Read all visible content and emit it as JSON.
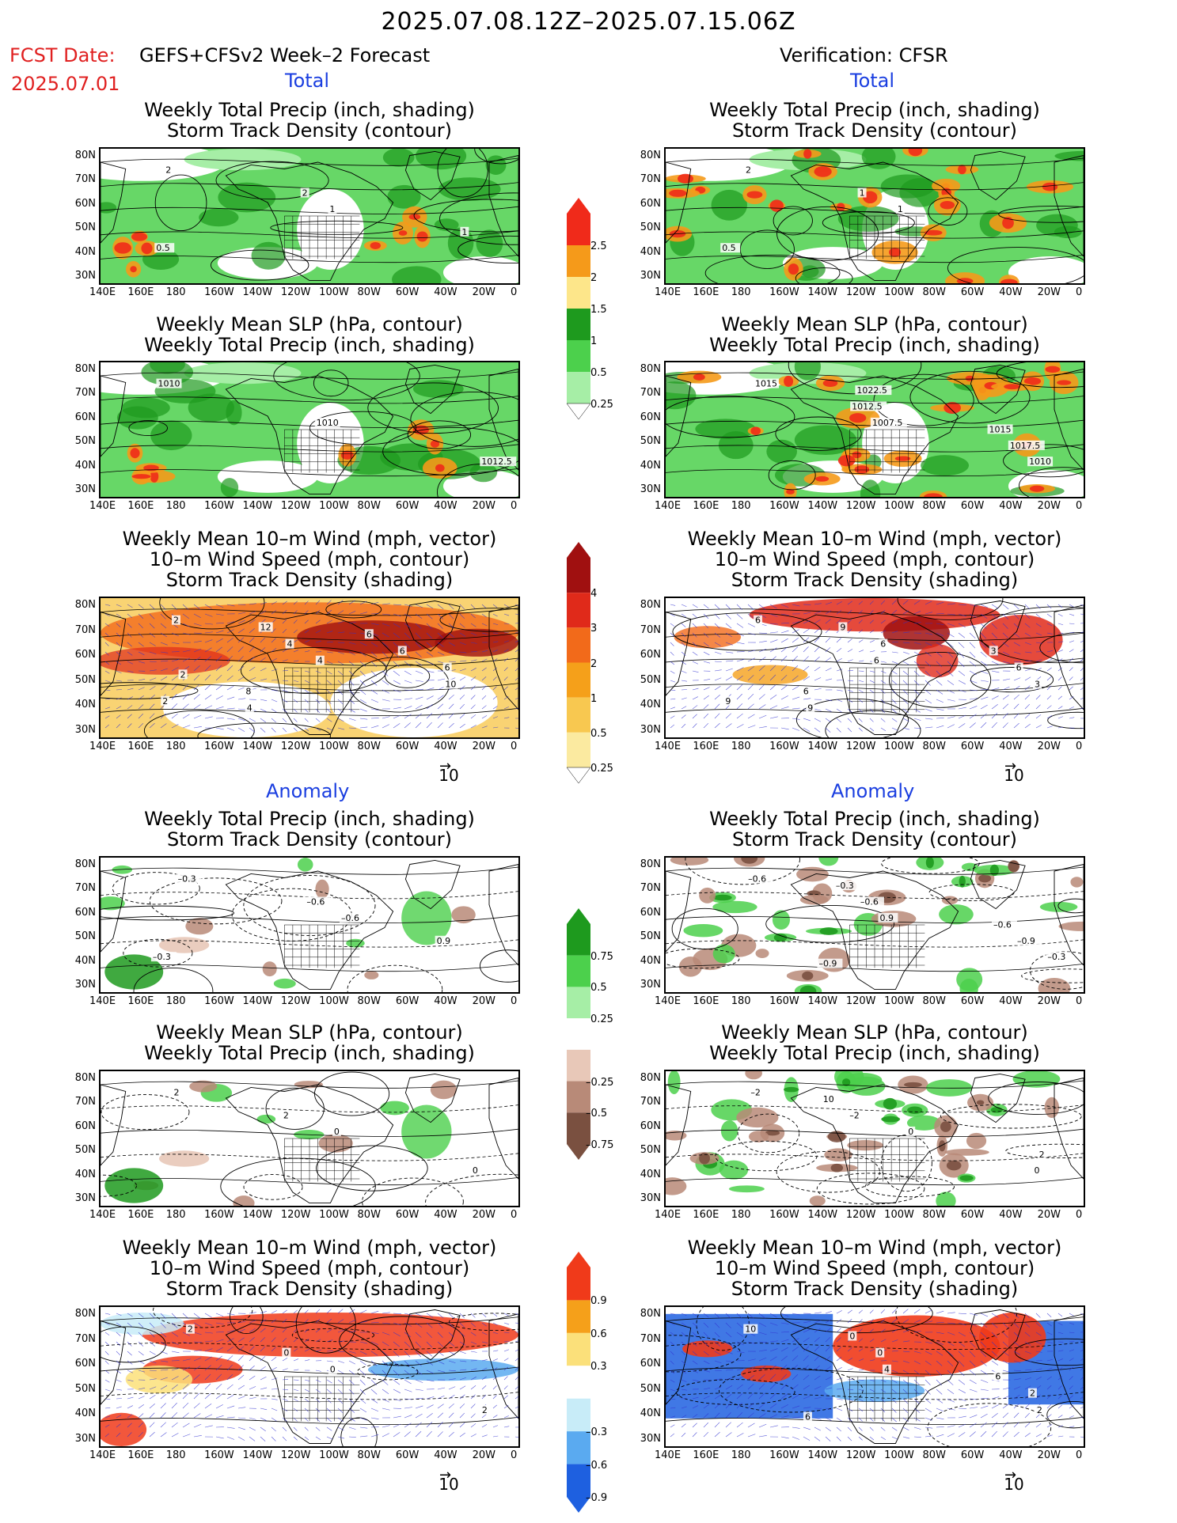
{
  "header": {
    "date_range": "2025.07.08.12Z–2025.07.15.06Z",
    "fcst_label": "FCST Date:",
    "fcst_date": "2025.07.01",
    "model": "GEFS+CFSv2 Week–2 Forecast",
    "verification": "Verification: CFSR"
  },
  "sections": {
    "total": "Total",
    "anomaly": "Anomaly"
  },
  "panel_titles": {
    "precip_storm": [
      "Weekly Total Precip (inch, shading)",
      "Storm Track Density (contour)"
    ],
    "slp_precip": [
      "Weekly Mean SLP (hPa, contour)",
      "Weekly Total Precip (inch, shading)"
    ],
    "wind_storm": [
      "Weekly Mean 10–m Wind (mph, vector)",
      "10–m Wind Speed (mph, contour)",
      "Storm Track Density (shading)"
    ]
  },
  "axes": {
    "lat_labels": [
      "80N",
      "70N",
      "60N",
      "50N",
      "40N",
      "30N"
    ],
    "lon_labels": [
      "140E",
      "160E",
      "180",
      "160W",
      "140W",
      "120W",
      "100W",
      "80W",
      "60W",
      "40W",
      "20W",
      "0"
    ]
  },
  "vector_ref": "10",
  "colorbars": {
    "total_precip": {
      "labels": [
        "2.5",
        "2",
        "1.5",
        "1",
        "0.5",
        "0.25"
      ],
      "colors": [
        "#f02a1a",
        "#f59a1a",
        "#fde68a",
        "#1e9a1e",
        "#4cd04c",
        "#a6eea6"
      ]
    },
    "total_storm": {
      "labels": [
        "4",
        "3",
        "2",
        "1",
        "0.5",
        "0.25"
      ],
      "colors": [
        "#a01010",
        "#e02a1a",
        "#f26a1a",
        "#f5a01a",
        "#f8c850",
        "#fbeaa0"
      ]
    },
    "anom_precip": {
      "labels": [
        "0.75",
        "0.5",
        "0.25",
        "–0.25",
        "–0.5",
        "–0.75"
      ],
      "colors": [
        "#1e9a1e",
        "#4cd04c",
        "#a6eea6",
        "#e8c8b8",
        "#b88a78",
        "#7a5040"
      ]
    },
    "anom_storm": {
      "labels": [
        "0.9",
        "0.6",
        "0.3",
        "–0.3",
        "–0.6",
        "–0.9"
      ],
      "colors": [
        "#f03a1a",
        "#f5a01a",
        "#fbe07a",
        "#c8ecf8",
        "#5aaaf0",
        "#1e60e0"
      ]
    }
  },
  "panel_annotations": {
    "p1": [
      "2",
      "1",
      "0.5",
      "2",
      "1"
    ],
    "p2": [
      "2",
      "1",
      "0.5",
      "1"
    ],
    "p3": [
      "1010",
      "1010",
      "1012.5"
    ],
    "p4": [
      "1015",
      "1007.5",
      "1010",
      "1012.5",
      "1017.5",
      "1022.5",
      "1015"
    ],
    "p5": [
      "2",
      "4",
      "2",
      "4",
      "10",
      "12",
      "6",
      "4",
      "6",
      "8",
      "6",
      "2"
    ],
    "p6": [
      "6",
      "6",
      "9",
      "6",
      "3",
      "9",
      "6",
      "9",
      "3",
      "6"
    ],
    "p7": [
      "–0.3",
      "–0.6",
      "–0.3",
      "–0.6",
      "0.9"
    ],
    "p8": [
      "–0.6",
      "0.9",
      "–0.3",
      "–0.6",
      "–0.9",
      "–0.3",
      "–0.6",
      "–0.9"
    ],
    "p9": [
      "2",
      "0",
      "0",
      "2"
    ],
    "p10": [
      "–2",
      "0",
      "0",
      "–2",
      "2",
      "10"
    ],
    "p11": [
      "2",
      "0",
      "2",
      "0"
    ],
    "p12": [
      "10",
      "4",
      "2",
      "0",
      "2",
      "0",
      "6",
      "6"
    ]
  }
}
